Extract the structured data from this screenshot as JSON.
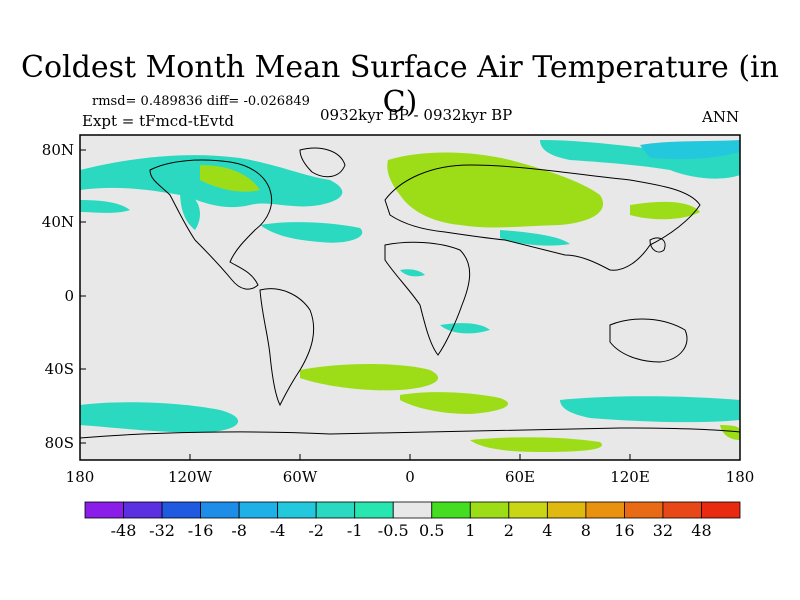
{
  "title": "Coldest Month Mean Surface Air Temperature (in C)",
  "stats": "rmsd= 0.489836  diff= -0.026849",
  "experiment": "Expt = tFmcd-tEvtd",
  "period": "0932kyr BP - 0932kyr BP",
  "season": "ANN",
  "axes": {
    "lat_labels": [
      "80N",
      "40N",
      "0",
      "40S",
      "80S"
    ],
    "lon_labels": [
      "180",
      "120W",
      "60W",
      "0",
      "60E",
      "120E",
      "180"
    ]
  },
  "colorbar": {
    "labels": [
      "-48",
      "-32",
      "-16",
      "-8",
      "-4",
      "-2",
      "-1",
      "-0.5",
      "0.5",
      "1",
      "2",
      "4",
      "8",
      "16",
      "32",
      "48"
    ],
    "colors": [
      "#8a1de8",
      "#5a30e0",
      "#1f5ae0",
      "#1e8de8",
      "#1fb0e8",
      "#24c8dd",
      "#2ad9c0",
      "#28e6b0",
      "#e8e8e8",
      "#44dd22",
      "#9ddd18",
      "#c9d616",
      "#e0b910",
      "#e89210",
      "#e86a14",
      "#e84818",
      "#e82a10"
    ]
  },
  "colors": {
    "land_outline": "#000000",
    "background_field": "#e8e8e8",
    "cool_anomaly": "#2ad9c0",
    "warm_anomaly": "#9ddd18"
  }
}
